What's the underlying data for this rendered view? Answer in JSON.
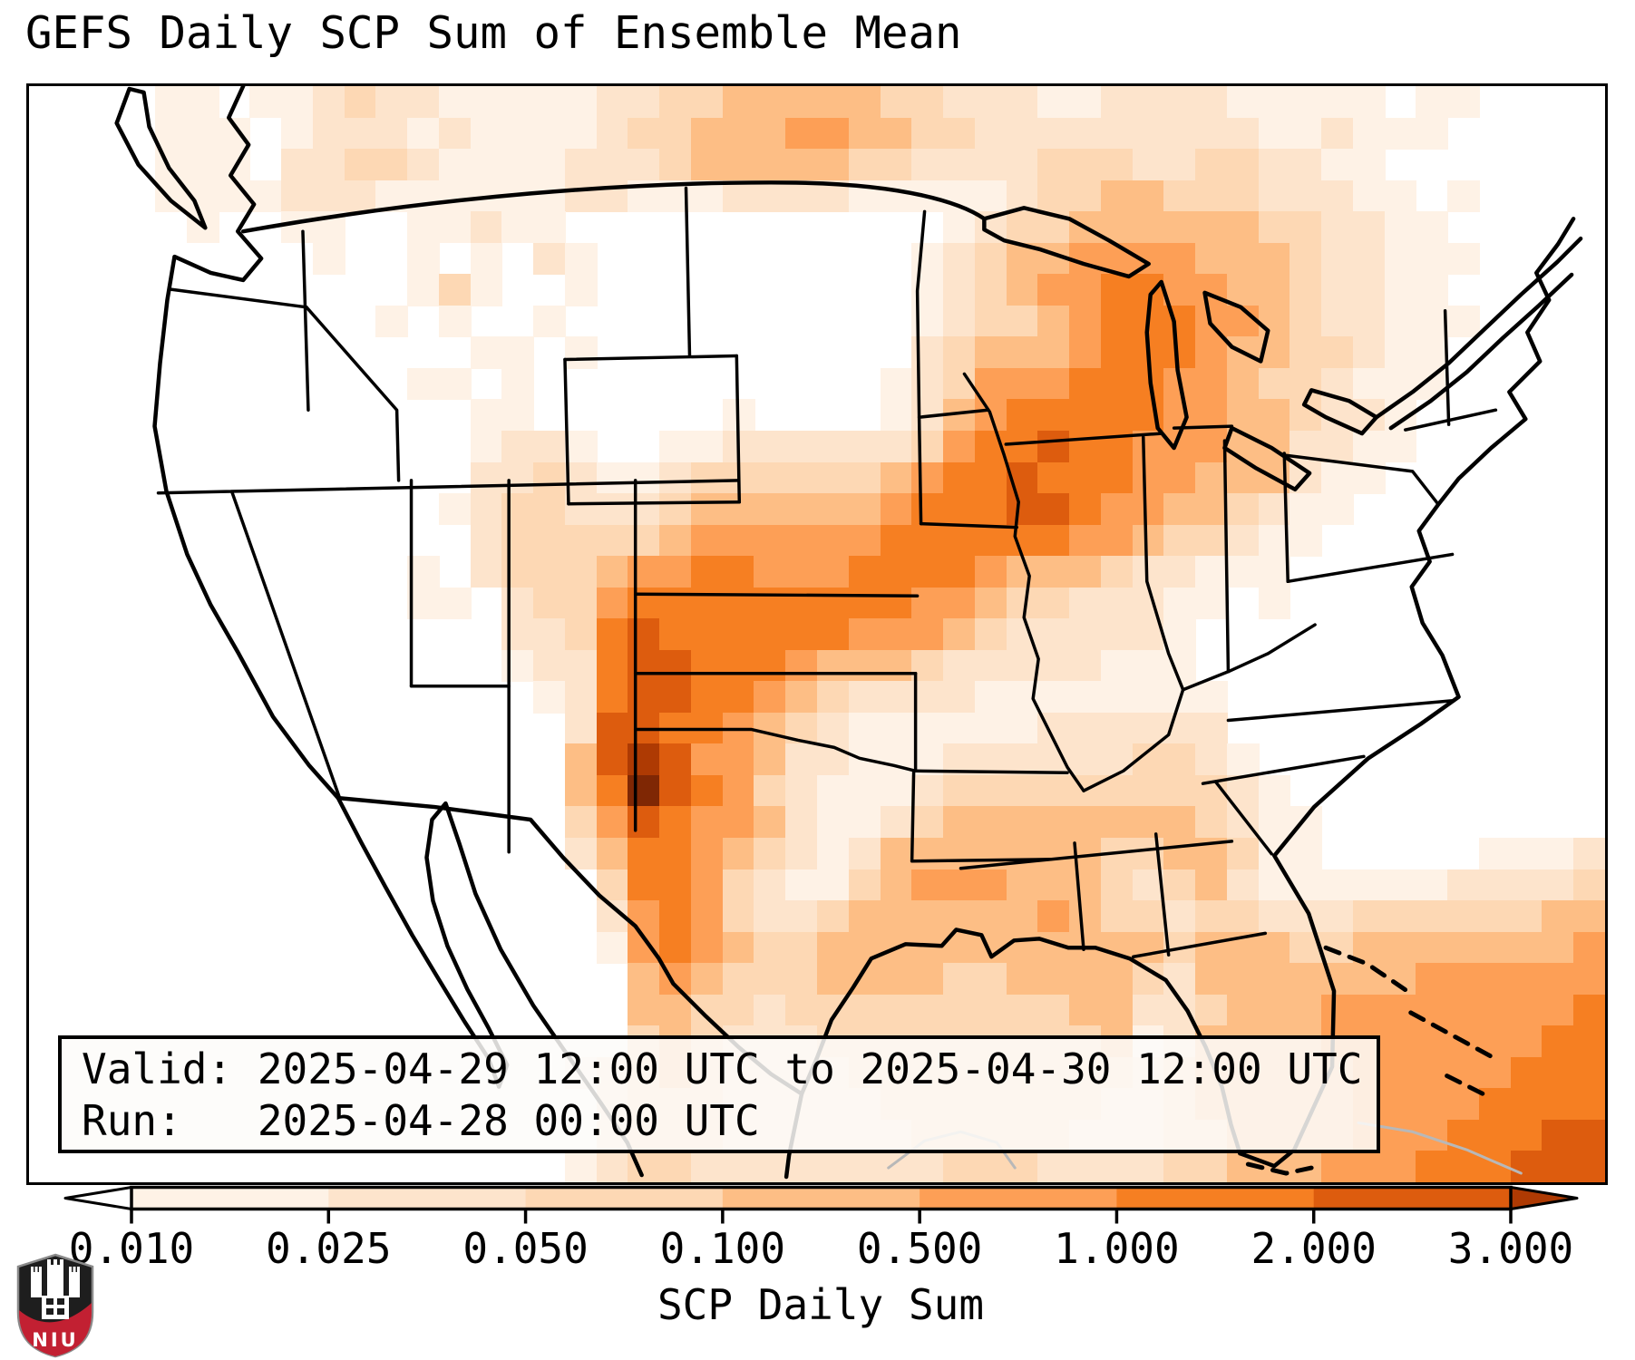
{
  "title": "GEFS Daily SCP Sum of Ensemble Mean",
  "info_box": {
    "valid_label": "Valid:",
    "valid_value": "2025-04-29 12:00 UTC to 2025-04-30 12:00 UTC",
    "run_label": "Run:",
    "run_value": "2025-04-28 00:00 UTC",
    "valid_line": "Valid: 2025-04-29 12:00 UTC to 2025-04-30 12:00 UTC",
    "run_line": "Run:   2025-04-28 00:00 UTC"
  },
  "colorbar": {
    "label": "SCP Daily Sum",
    "tick_labels": [
      "0.010",
      "0.025",
      "0.050",
      "0.100",
      "0.500",
      "1.000",
      "2.000",
      "3.000"
    ],
    "segment_colors": [
      "#fef2e6",
      "#fde4cc",
      "#fdd8b4",
      "#fdbe85",
      "#fd9f56",
      "#f67f22",
      "#dd5c0e"
    ],
    "under_color": "#ffffff",
    "over_color": "#ae3a03",
    "outline_color": "#000000"
  },
  "logo": {
    "text": "NIU",
    "shield_color": "#1e1e1e",
    "border_color": "#8a8a8a",
    "band_color": "#c22032",
    "castle_color": "#ffffff"
  },
  "chart_data": {
    "type": "heatmap",
    "title": "GEFS Daily SCP Sum of Ensemble Mean",
    "variable": "SCP Daily Sum",
    "levels": [
      0.01,
      0.025,
      0.05,
      0.1,
      0.5,
      1.0,
      2.0,
      3.0
    ],
    "colormap": "Oranges",
    "legend_position": "bottom",
    "palette": [
      "",
      "#fef2e6",
      "#fde4cc",
      "#fdd8b4",
      "#fdbe85",
      "#fd9f56",
      "#f67f22",
      "#dd5c0e",
      "#ae3a03",
      "#7f2704"
    ],
    "grid_cols": 50,
    "grid_rows": 35,
    "grid": [
      "00001101123221111122334444433222112222111110110000",
      "00001110122212111123344455443322222222211211100000",
      "00001110223321111222344444332222333223322110000000",
      "00001111222111111221112222111112334433322211010000",
      "00000100110011211000000000000123344444433221100000",
      "00000000010010102100000000001234455554443221110000",
      "00000000000013100100000000001234556655443221100000",
      "00000000000101001000000000001233456665543221110000",
      "00000000000000110100000000002344456665443321100000",
      "00000000000011010000000000012355566655433211100000",
      "00000000000000110000001000012456666655443221000000",
      "00000000000000122100112222223566766555442211000000",
      "00000000000000223211233333345667666554442110000000",
      "00000000000001233222344444456667765544321100000000",
      "00000000000000233333455555566666655433211000000000",
      "00000000000010233345566555666654443221110000000000",
      "00000000000011023356666666665543322211010000000000",
      "00000000000000022367666666555432222210000000000000",
      "00000000000000012267766654443222221110000000000000",
      "00000000000000001267766543222211111111000000000000",
      "00000000000000000277665432111111222222000000000000",
      "00000000000000000478755422111222222332100000000000",
      "00000000000000000469765321112333333333210000000000",
      "00000000000000000357655421123444444443211000000000",
      "00000000000000000246654321244444443344311000001112",
      "00000000000000000036653211345554443234211111122223",
      "00000000000000000025653223444444543323322233333344",
      "00000000000000000015654334444444444434443344444445",
      "00000000000000000004543334444334444324444444555555",
      "00000000000000000004433233333333344223444555555556",
      "00000000000000000003432223333333334124444555555566",
      "00000000000000000123432222333333333234444455555666",
      "00000000000000000023332222233333332234444455556666",
      "00000000000000000023332222223333322233444455566677",
      "00000000000000000123322222222333222233444555666777"
    ]
  }
}
